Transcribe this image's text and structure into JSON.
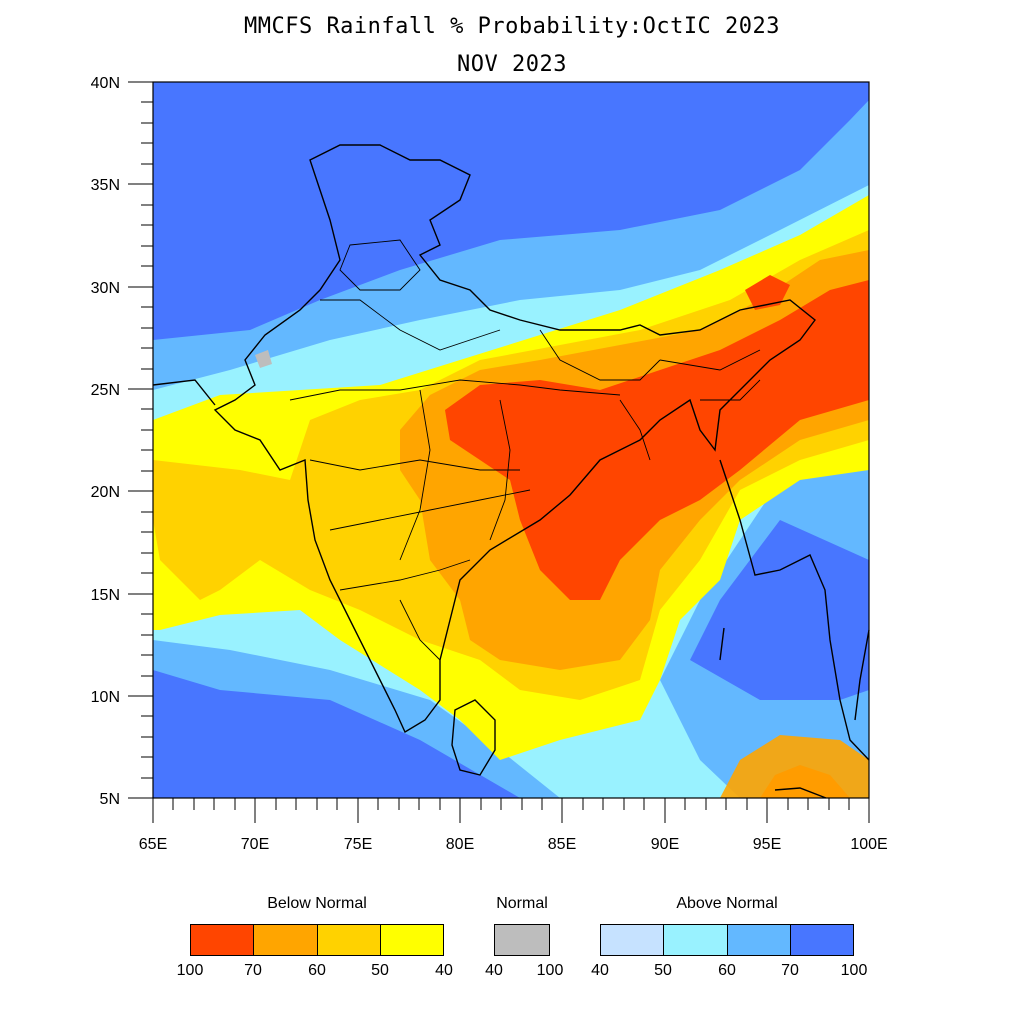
{
  "title": "MMCFS Rainfall % Probability:OctIC 2023",
  "subtitle": "NOV 2023",
  "y_axis_ticks": [
    "40N",
    "35N",
    "30N",
    "25N",
    "20N",
    "15N",
    "10N",
    "5N"
  ],
  "x_axis_ticks": [
    "65E",
    "70E",
    "75E",
    "80E",
    "85E",
    "90E",
    "95E",
    "100E"
  ],
  "map": {
    "lon_range": [
      65,
      100
    ],
    "lat_range": [
      5,
      40
    ],
    "region": "India and surrounding seas",
    "background_category": "Above Normal 70-100"
  },
  "legend": {
    "below_normal": {
      "label": "Below Normal",
      "bins": [
        "100",
        "70",
        "60",
        "50",
        "40"
      ],
      "colors": [
        "#ff4500",
        "#ffa500",
        "#ffd200",
        "#ffff00"
      ]
    },
    "normal": {
      "label": "Normal",
      "bins": [
        "40",
        "100"
      ],
      "colors": [
        "#bdbdbd"
      ]
    },
    "above_normal": {
      "label": "Above Normal",
      "bins": [
        "40",
        "50",
        "60",
        "70",
        "100"
      ],
      "colors": [
        "#c6e2ff",
        "#99f2ff",
        "#63b8ff",
        "#4876ff"
      ]
    }
  }
}
